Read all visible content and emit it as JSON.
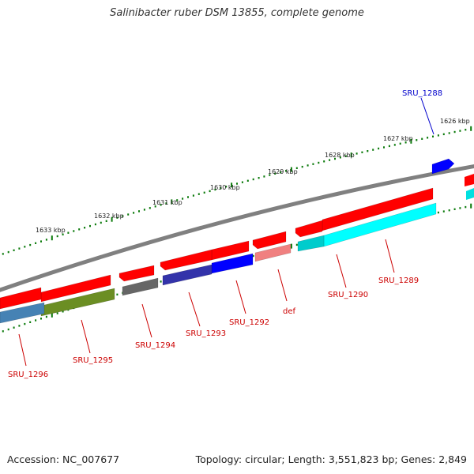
{
  "title": "Salinibacter ruber DSM 13855, complete genome",
  "footer": {
    "accession": "Accession: NC_007677",
    "summary": "Topology: circular; Length: 3,551,823 bp; Genes: 2,849"
  },
  "map": {
    "backbone_color": "#808080",
    "tick_color": "#0a7a0a",
    "ruler_labels": [
      "1626 kbp",
      "1627 kbp",
      "1628 kbp",
      "1629 kbp",
      "1630 kbp",
      "1631 kbp",
      "1632 kbp",
      "1633 kbp"
    ],
    "genes": [
      {
        "name": "SRU_1288",
        "label_color": "#0000cc",
        "colors": [
          "#0000ff"
        ]
      },
      {
        "name": "SRU_1289",
        "label_color": "#cc0000",
        "colors": [
          "#ff0000",
          "#00ffff"
        ]
      },
      {
        "name": "SRU_1290",
        "label_color": "#cc0000",
        "colors": [
          "#ff0000",
          "#00cccc"
        ]
      },
      {
        "name": "def",
        "label_color": "#cc0000",
        "colors": [
          "#ff0000",
          "#f08080"
        ]
      },
      {
        "name": "SRU_1292",
        "label_color": "#cc0000",
        "colors": [
          "#ff0000",
          "#0000ff"
        ]
      },
      {
        "name": "SRU_1293",
        "label_color": "#cc0000",
        "colors": [
          "#ff0000",
          "#3333aa"
        ]
      },
      {
        "name": "SRU_1294",
        "label_color": "#cc0000",
        "colors": [
          "#ff0000",
          "#666666"
        ]
      },
      {
        "name": "SRU_1295",
        "label_color": "#cc0000",
        "colors": [
          "#ff0000",
          "#6b8e23"
        ]
      },
      {
        "name": "SRU_1296",
        "label_color": "#cc0000",
        "colors": [
          "#ff0000",
          "#4682b4"
        ]
      }
    ]
  }
}
